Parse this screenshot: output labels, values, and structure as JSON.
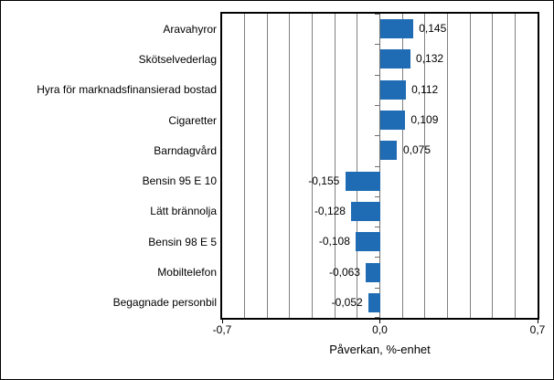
{
  "chart_data": {
    "type": "bar",
    "orientation": "horizontal",
    "categories": [
      "Aravahyror",
      "Skötselvederlag",
      "Hyra för marknadsfinansierad bostad",
      "Cigaretter",
      "Barndagvård",
      "Bensin 95 E 10",
      "Lätt brännolja",
      "Bensin 98 E 5",
      "Mobiltelefon",
      "Begagnade personbil"
    ],
    "values": [
      0.145,
      0.132,
      0.112,
      0.109,
      0.075,
      -0.155,
      -0.128,
      -0.108,
      -0.063,
      -0.052
    ],
    "value_labels": [
      "0,145",
      "0,132",
      "0,112",
      "0,109",
      "0,075",
      "-0,155",
      "-0,128",
      "-0,108",
      "-0,063",
      "-0,052"
    ],
    "title": "",
    "xlabel": "Påverkan, %-enhet",
    "ylabel": "",
    "xlim": [
      -0.7,
      0.7
    ],
    "x_ticks": [
      {
        "value": -0.7,
        "label": "-0,7"
      },
      {
        "value": 0.0,
        "label": "0,0"
      },
      {
        "value": 0.7,
        "label": "0,7"
      }
    ],
    "gridline_step": 0.1,
    "grid": "vertical",
    "legend": "none",
    "bar_color": "#1F6CB4",
    "gridline_color": "#808080",
    "border_color": "#000000",
    "background_color": "#FFFFFF"
  }
}
